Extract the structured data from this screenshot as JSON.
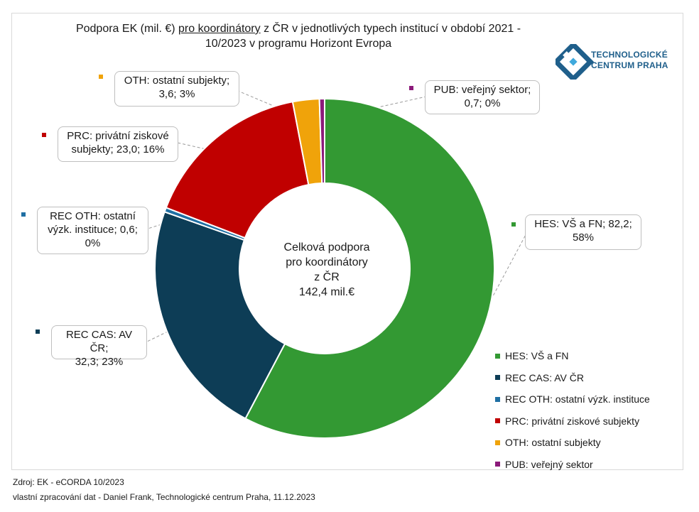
{
  "title": {
    "part1": "Podpora EK (mil. €) ",
    "part2": "pro koordinátory",
    "part3": " z ČR v jednotlivých typech institucí v období 2021 -",
    "line2": "10/2023 v programu Horizont Evropa"
  },
  "logo": {
    "line1": "TECHNOLOGICKÉ",
    "line2": "CENTRUM PRAHA",
    "color": "#1f5f8b"
  },
  "center": {
    "lines": [
      "Celková podpora",
      "pro koordinátory",
      "z ČR",
      "142,4 mil.€"
    ]
  },
  "chart_data": {
    "type": "pie",
    "variant": "donut",
    "total": 142.4,
    "unit": "mil. €",
    "series": [
      {
        "name": "HES: VŠ a FN",
        "value": 82.2,
        "percent": 58,
        "color": "#339933",
        "label_lines": [
          "HES: VŠ a FN;  82,2;",
          "58%"
        ]
      },
      {
        "name": "REC CAS: AV ČR",
        "value": 32.3,
        "percent": 23,
        "color": "#0d3d56",
        "label_lines": [
          "REC CAS: AV ČR;",
          "32,3; 23%"
        ]
      },
      {
        "name": "REC OTH: ostatní výzk. instituce",
        "value": 0.6,
        "percent": 0,
        "color": "#1f6fa3",
        "label_lines": [
          "REC OTH: ostatní",
          "výzk. instituce;  0,6;",
          "0%"
        ]
      },
      {
        "name": "PRC: privátní ziskové subjekty",
        "value": 23.0,
        "percent": 16,
        "color": "#c00000",
        "label_lines": [
          "PRC: privátní ziskové",
          "subjekty;  23,0; 16%"
        ]
      },
      {
        "name": "OTH: ostatní subjekty",
        "value": 3.6,
        "percent": 3,
        "color": "#f0a30a",
        "label_lines": [
          "OTH: ostatní subjekty;",
          "3,6; 3%"
        ]
      },
      {
        "name": "PUB: veřejný sektor",
        "value": 0.7,
        "percent": 0,
        "color": "#8b1a7a",
        "label_lines": [
          "PUB: veřejný sektor;",
          "0,7; 0%"
        ]
      }
    ],
    "legend_position": "bottom-right"
  },
  "footer": {
    "source": "Zdroj: EK - eCORDA 10/2023",
    "processing": "vlastní zpracování dat - Daniel Frank, Technologické centrum Praha, 11.12.2023"
  }
}
